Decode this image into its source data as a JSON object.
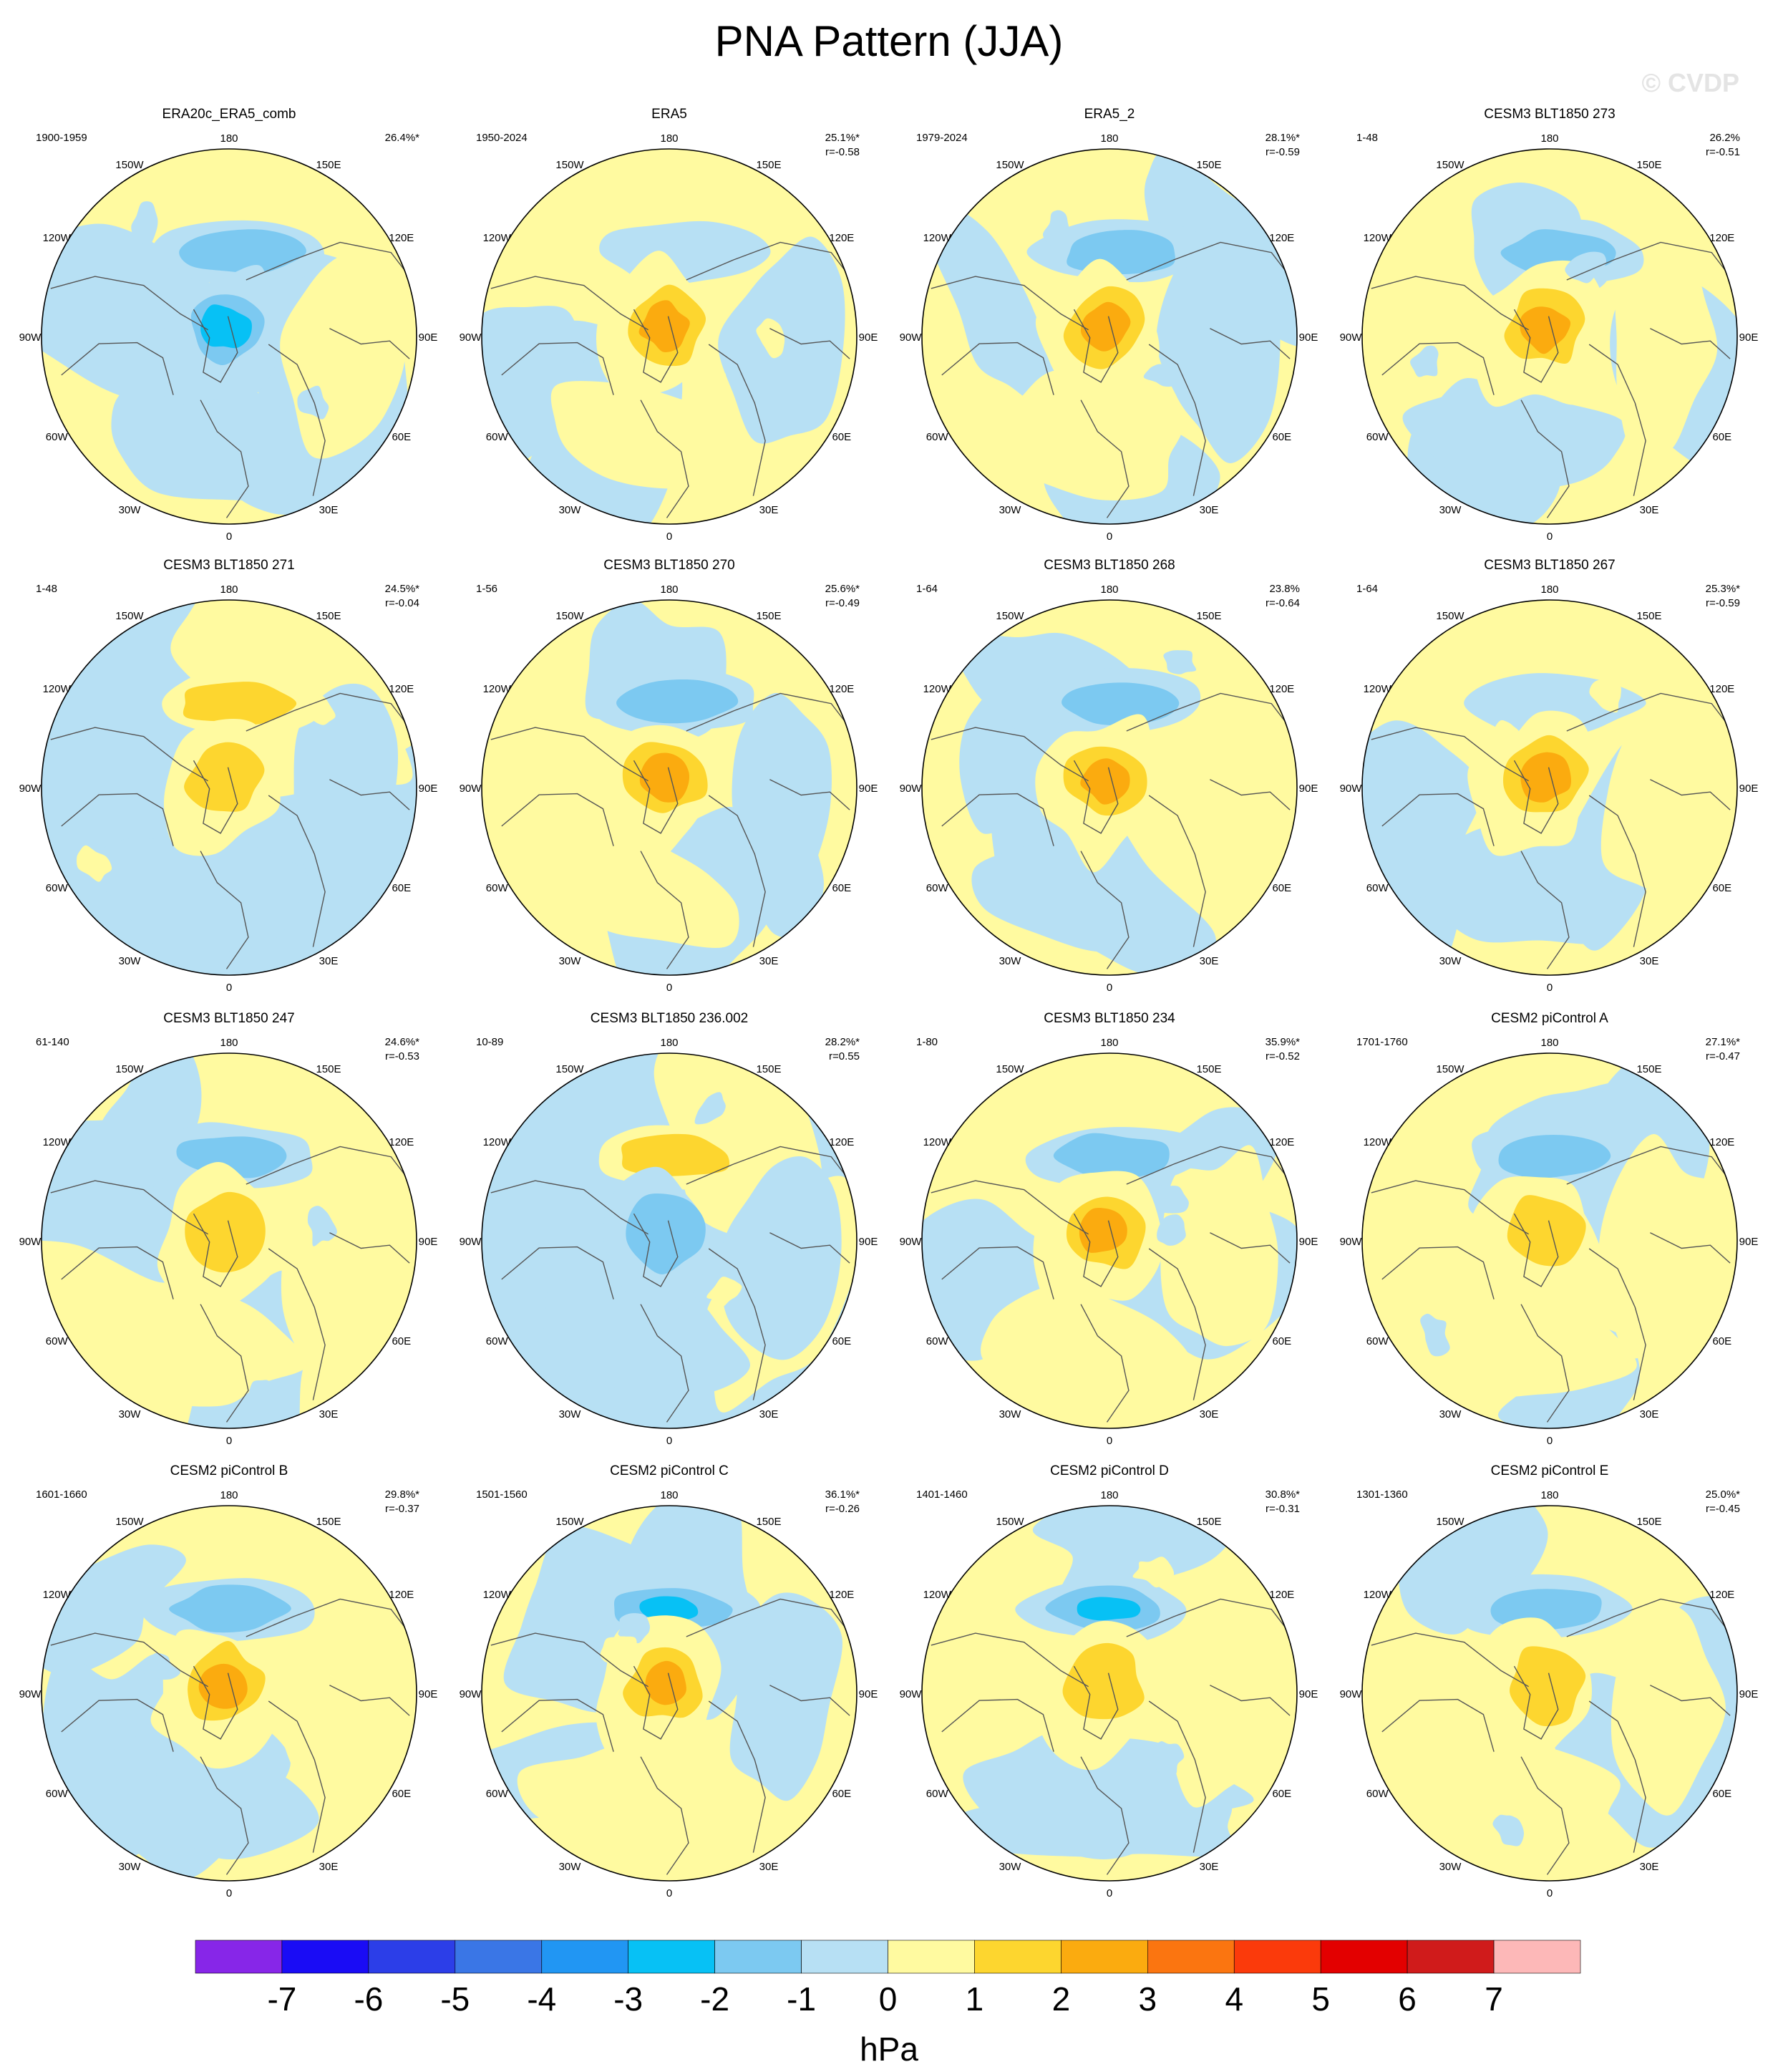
{
  "title": "PNA Pattern (JJA)",
  "watermark": "© CVDP",
  "lon_labels": [
    "180",
    "150E",
    "120E",
    "90E",
    "60E",
    "30E",
    "0",
    "30W",
    "60W",
    "90W",
    "120W",
    "150W"
  ],
  "colorbar": {
    "unit_label": "hPa",
    "ticks": [
      "-7",
      "-6",
      "-5",
      "-4",
      "-3",
      "-2",
      "-1",
      "0",
      "1",
      "2",
      "3",
      "4",
      "5",
      "6",
      "7"
    ],
    "colors": [
      "#8726e8",
      "#1a0cf5",
      "#2c3ee8",
      "#3a76e6",
      "#2196f3",
      "#07c1f5",
      "#7cc9f1",
      "#b7e0f4",
      "#fffaa0",
      "#fdd62f",
      "#fbab0f",
      "#fb7510",
      "#fb3a0b",
      "#e30000",
      "#d01b1b",
      "#fdb8b8"
    ]
  },
  "chart_data": [
    {
      "type": "heatmap",
      "title": "ERA20c_ERA5_comb",
      "years": "1900-1959",
      "pct": "26.4%*",
      "r": "",
      "arctic": -3,
      "pac": -2,
      "atl": -1,
      "eur": 1,
      "seed": 1
    },
    {
      "type": "heatmap",
      "title": "ERA5",
      "years": "1950-2024",
      "pct": "25.1%*",
      "r": "r=-0.58",
      "arctic": 3,
      "pac": -1,
      "atl": 1,
      "eur": -1,
      "seed": 2
    },
    {
      "type": "heatmap",
      "title": "ERA5_2",
      "years": "1979-2024",
      "pct": "28.1%*",
      "r": "r=-0.59",
      "arctic": 3,
      "pac": -2,
      "atl": 1,
      "eur": -1,
      "seed": 3
    },
    {
      "type": "heatmap",
      "title": "CESM3 BLT1850 273",
      "years": "1-48",
      "pct": "26.2%",
      "r": "r=-0.51",
      "arctic": 3,
      "pac": -2,
      "atl": -1,
      "eur": 1,
      "seed": 4
    },
    {
      "type": "heatmap",
      "title": "CESM3 BLT1850 271",
      "years": "1-48",
      "pct": "24.5%*",
      "r": "r=-0.04",
      "arctic": 2,
      "pac": 2,
      "atl": -1,
      "eur": -1,
      "seed": 5
    },
    {
      "type": "heatmap",
      "title": "CESM3 BLT1850 270",
      "years": "1-56",
      "pct": "25.6%*",
      "r": "r=-0.49",
      "arctic": 3,
      "pac": -2,
      "atl": 1,
      "eur": -1,
      "seed": 6
    },
    {
      "type": "heatmap",
      "title": "CESM3 BLT1850 268",
      "years": "1-64",
      "pct": "23.8%",
      "r": "r=-0.64",
      "arctic": 3,
      "pac": -2,
      "atl": -1,
      "eur": 1,
      "seed": 7
    },
    {
      "type": "heatmap",
      "title": "CESM3 BLT1850 267",
      "years": "1-64",
      "pct": "25.3%*",
      "r": "r=-0.59",
      "arctic": 3,
      "pac": -1,
      "atl": -1,
      "eur": 1,
      "seed": 8
    },
    {
      "type": "heatmap",
      "title": "CESM3 BLT1850 247",
      "years": "61-140",
      "pct": "24.6%*",
      "r": "r=-0.53",
      "arctic": 2,
      "pac": -2,
      "atl": 1,
      "eur": 1,
      "seed": 9
    },
    {
      "type": "heatmap",
      "title": "CESM3 BLT1850 236.002",
      "years": "10-89",
      "pct": "28.2%*",
      "r": "r=0.55",
      "arctic": -2,
      "pac": 2,
      "atl": -1,
      "eur": -1,
      "seed": 10
    },
    {
      "type": "heatmap",
      "title": "CESM3 BLT1850 234",
      "years": "1-80",
      "pct": "35.9%*",
      "r": "r=-0.52",
      "arctic": 3,
      "pac": -2,
      "atl": 1,
      "eur": 1,
      "seed": 11
    },
    {
      "type": "heatmap",
      "title": "CESM2 piControl A",
      "years": "1701-1760",
      "pct": "27.1%*",
      "r": "r=-0.47",
      "arctic": 2,
      "pac": -2,
      "atl": 1,
      "eur": 1,
      "seed": 12
    },
    {
      "type": "heatmap",
      "title": "CESM2 piControl B",
      "years": "1601-1660",
      "pct": "29.8%*",
      "r": "r=-0.37",
      "arctic": 3,
      "pac": -2,
      "atl": -1,
      "eur": 1,
      "seed": 13
    },
    {
      "type": "heatmap",
      "title": "CESM2 piControl C",
      "years": "1501-1560",
      "pct": "36.1%*",
      "r": "r=-0.26",
      "arctic": 3,
      "pac": -3,
      "atl": 1,
      "eur": -1,
      "seed": 14
    },
    {
      "type": "heatmap",
      "title": "CESM2 piControl D",
      "years": "1401-1460",
      "pct": "30.8%*",
      "r": "r=-0.31",
      "arctic": 2,
      "pac": -3,
      "atl": -1,
      "eur": 1,
      "seed": 15
    },
    {
      "type": "heatmap",
      "title": "CESM2 piControl E",
      "years": "1301-1360",
      "pct": "25.0%*",
      "r": "r=-0.45",
      "arctic": 2,
      "pac": -2,
      "atl": 1,
      "eur": 1,
      "seed": 16
    }
  ]
}
